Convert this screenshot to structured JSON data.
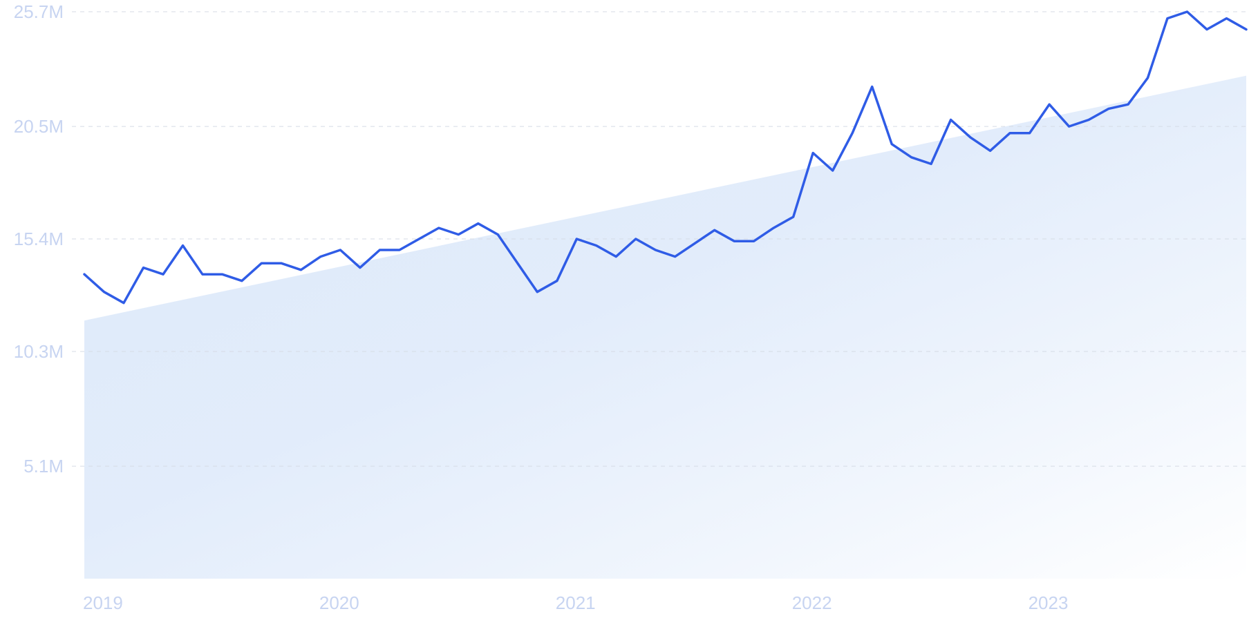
{
  "colors": {
    "line": "#2f5ce6",
    "area_start": "#dde9fa",
    "area_end": "#ffffff",
    "grid": "#d5dbe5",
    "tick_text": "#c7d4f1"
  },
  "chart_data": {
    "type": "line",
    "title": "",
    "xlabel": "",
    "ylabel": "",
    "grid": true,
    "ylim": [
      0,
      25.7
    ],
    "xlim": [
      "2019-01",
      "2023-12"
    ],
    "y_ticks": [
      {
        "value": 5.1,
        "label": "5.1M"
      },
      {
        "value": 10.3,
        "label": "10.3M"
      },
      {
        "value": 15.4,
        "label": "15.4M"
      },
      {
        "value": 20.5,
        "label": "20.5M"
      },
      {
        "value": 25.7,
        "label": "25.7M"
      }
    ],
    "x_ticks": [
      {
        "value": "2019-01",
        "label": "2019"
      },
      {
        "value": "2020-01",
        "label": "2020"
      },
      {
        "value": "2021-01",
        "label": "2021"
      },
      {
        "value": "2022-01",
        "label": "2022"
      },
      {
        "value": "2023-01",
        "label": "2023"
      }
    ],
    "series": [
      {
        "kind": "line",
        "x": [
          "2019-01",
          "2019-02",
          "2019-03",
          "2019-04",
          "2019-05",
          "2019-06",
          "2019-07",
          "2019-08",
          "2019-09",
          "2019-10",
          "2019-11",
          "2019-12",
          "2020-01",
          "2020-02",
          "2020-03",
          "2020-04",
          "2020-05",
          "2020-06",
          "2020-07",
          "2020-08",
          "2020-09",
          "2020-10",
          "2020-11",
          "2020-12",
          "2021-01",
          "2021-02",
          "2021-03",
          "2021-04",
          "2021-05",
          "2021-06",
          "2021-07",
          "2021-08",
          "2021-09",
          "2021-10",
          "2021-11",
          "2021-12",
          "2022-01",
          "2022-02",
          "2022-03",
          "2022-04",
          "2022-05",
          "2022-06",
          "2022-07",
          "2022-08",
          "2022-09",
          "2022-10",
          "2022-11",
          "2022-12",
          "2023-01",
          "2023-02",
          "2023-03",
          "2023-04",
          "2023-05",
          "2023-06",
          "2023-07",
          "2023-08",
          "2023-09",
          "2023-10",
          "2023-11",
          "2023-12"
        ],
        "values": [
          13.8,
          13.0,
          12.5,
          14.1,
          13.8,
          15.1,
          13.8,
          13.8,
          13.5,
          14.3,
          14.3,
          14.0,
          14.6,
          14.9,
          14.1,
          14.9,
          14.9,
          15.4,
          15.9,
          15.6,
          16.1,
          15.6,
          14.3,
          13.0,
          13.5,
          15.4,
          15.1,
          14.6,
          15.4,
          14.9,
          14.6,
          15.2,
          15.8,
          15.3,
          15.3,
          15.9,
          16.4,
          19.3,
          18.5,
          20.2,
          22.3,
          19.7,
          19.1,
          18.8,
          20.8,
          20.0,
          19.4,
          20.2,
          20.2,
          21.5,
          20.5,
          20.8,
          21.3,
          21.5,
          22.7,
          25.4,
          25.7,
          24.9,
          25.4,
          24.9
        ]
      },
      {
        "kind": "trend-area",
        "x": [
          "2019-01",
          "2023-12"
        ],
        "values": [
          11.7,
          22.8
        ]
      }
    ]
  }
}
